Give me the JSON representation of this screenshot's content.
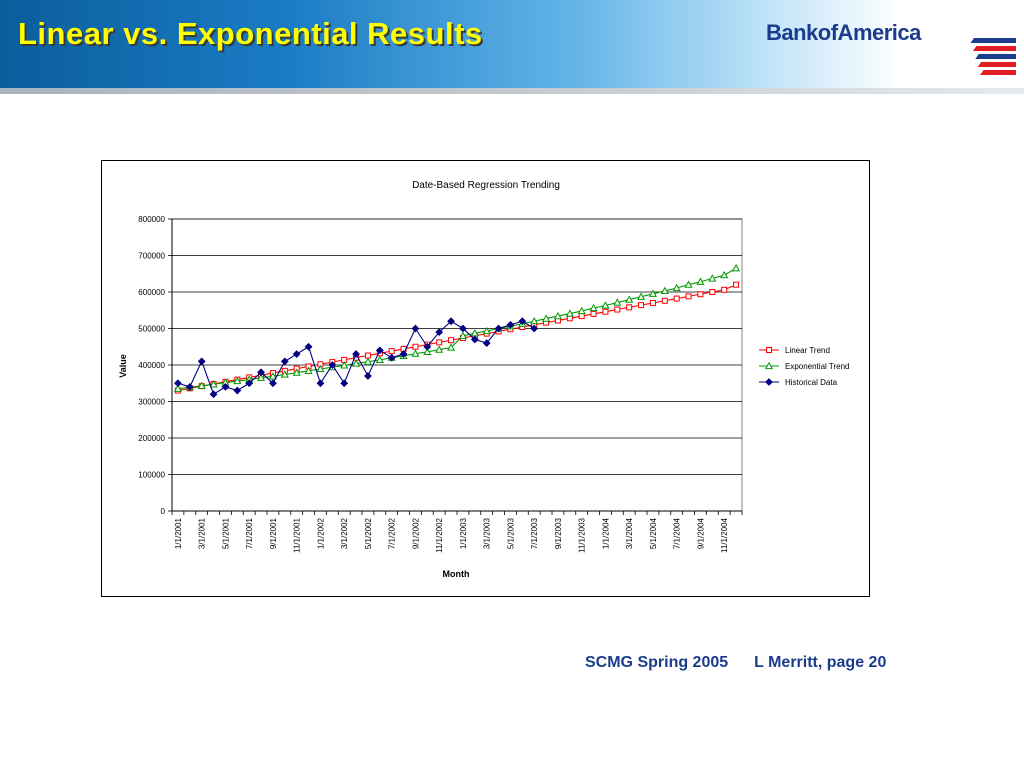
{
  "slide": {
    "title": "Linear vs. Exponential Results",
    "logo_text": "BankofAmerica",
    "footer_event": "SCMG Spring 2005",
    "footer_author": "L Merritt, page 20"
  },
  "colors": {
    "title": "#ffff00",
    "logo_blue": "#1b3c8c",
    "logo_red": "#e31b23",
    "linear": "#ff0000",
    "exponential": "#009900",
    "historical": "#000080",
    "plot_bg": "#ffffff"
  },
  "chart_data": {
    "type": "line",
    "title": "Date-Based Regression Trending",
    "xlabel": "Month",
    "ylabel": "Value",
    "ylim": [
      0,
      800000
    ],
    "yticks": [
      0,
      100000,
      200000,
      300000,
      400000,
      500000,
      600000,
      700000,
      800000
    ],
    "grid": true,
    "legend_position": "right",
    "x": [
      "1/1/2001",
      "2/1/2001",
      "3/1/2001",
      "4/1/2001",
      "5/1/2001",
      "6/1/2001",
      "7/1/2001",
      "8/1/2001",
      "9/1/2001",
      "10/1/2001",
      "11/1/2001",
      "12/1/2001",
      "1/1/2002",
      "2/1/2002",
      "3/1/2002",
      "4/1/2002",
      "5/1/2002",
      "6/1/2002",
      "7/1/2002",
      "8/1/2002",
      "9/1/2002",
      "10/1/2002",
      "11/1/2002",
      "12/1/2002",
      "1/1/2003",
      "2/1/2003",
      "3/1/2003",
      "4/1/2003",
      "5/1/2003",
      "6/1/2003",
      "7/1/2003",
      "8/1/2003",
      "9/1/2003",
      "10/1/2003",
      "11/1/2003",
      "12/1/2003",
      "1/1/2004",
      "2/1/2004",
      "3/1/2004",
      "4/1/2004",
      "5/1/2004",
      "6/1/2004",
      "7/1/2004",
      "8/1/2004",
      "9/1/2004",
      "10/1/2004",
      "11/1/2004",
      "12/1/2004"
    ],
    "xtick_labels": [
      "1/1/2001",
      "3/1/2001",
      "5/1/2001",
      "7/1/2001",
      "9/1/2001",
      "11/1/2001",
      "1/1/2002",
      "3/1/2002",
      "5/1/2002",
      "7/1/2002",
      "9/1/2002",
      "11/1/2002",
      "1/1/2003",
      "3/1/2003",
      "5/1/2003",
      "7/1/2003",
      "9/1/2003",
      "11/1/2003",
      "1/1/2004",
      "3/1/2004",
      "5/1/2004",
      "7/1/2004",
      "9/1/2004",
      "11/1/2004"
    ],
    "series": [
      {
        "name": "Linear Trend",
        "marker": "square",
        "color": "#ff0000",
        "values": [
          330000,
          336000,
          342000,
          348000,
          354000,
          360000,
          366000,
          372000,
          378000,
          384000,
          390000,
          396000,
          402000,
          408000,
          414000,
          420000,
          426000,
          432000,
          438000,
          444000,
          450000,
          456000,
          462000,
          468000,
          474000,
          480000,
          486000,
          492000,
          498000,
          504000,
          510000,
          516000,
          522000,
          528000,
          534000,
          540000,
          546000,
          552000,
          558000,
          564000,
          570000,
          576000,
          582000,
          588000,
          594000,
          600000,
          606000,
          620000
        ]
      },
      {
        "name": "Exponential Trend",
        "marker": "triangle",
        "color": "#009900",
        "values": [
          335000,
          339000,
          343000,
          347000,
          352000,
          356000,
          360000,
          365000,
          369000,
          374000,
          379000,
          384000,
          389000,
          394000,
          399000,
          404000,
          409000,
          414000,
          420000,
          425000,
          431000,
          436000,
          442000,
          448000,
          480000,
          487000,
          493000,
          500000,
          506000,
          513000,
          520000,
          527000,
          534000,
          541000,
          548000,
          556000,
          563000,
          571000,
          579000,
          587000,
          595000,
          603000,
          611000,
          620000,
          628000,
          637000,
          646000,
          665000
        ]
      },
      {
        "name": "Historical Data",
        "marker": "diamond",
        "color": "#000080",
        "values": [
          350000,
          340000,
          410000,
          320000,
          340000,
          330000,
          350000,
          380000,
          350000,
          410000,
          430000,
          450000,
          350000,
          400000,
          350000,
          430000,
          370000,
          440000,
          420000,
          430000,
          500000,
          450000,
          490000,
          520000,
          500000,
          470000,
          460000,
          500000,
          510000,
          520000,
          500000,
          null,
          null,
          null,
          null,
          null,
          null,
          null,
          null,
          null,
          null,
          null,
          null,
          null,
          null,
          null,
          null,
          null
        ]
      }
    ]
  }
}
